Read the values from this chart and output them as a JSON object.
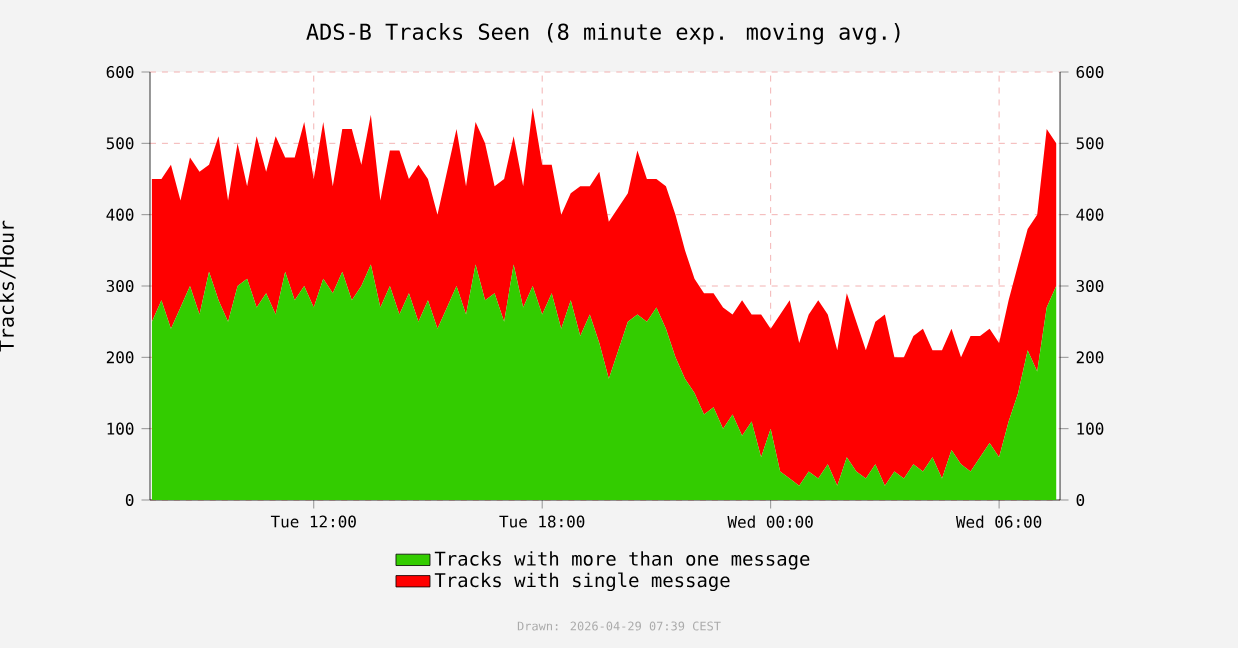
{
  "chart_data": {
    "type": "area",
    "stacked": true,
    "title": "ADS-B Tracks Seen (8 minute exp. moving avg.)",
    "ylabel": "Tracks/Hour",
    "annotations": [
      "Drawn: 2026-04-29 07:39 CEST"
    ],
    "x": [
      "2026-04-28T07:45",
      "2026-04-28T08:00",
      "2026-04-28T08:15",
      "2026-04-28T08:30",
      "2026-04-28T08:45",
      "2026-04-28T09:00",
      "2026-04-28T09:15",
      "2026-04-28T09:30",
      "2026-04-28T09:45",
      "2026-04-28T10:00",
      "2026-04-28T10:15",
      "2026-04-28T10:30",
      "2026-04-28T10:45",
      "2026-04-28T11:00",
      "2026-04-28T11:15",
      "2026-04-28T11:30",
      "2026-04-28T11:45",
      "2026-04-28T12:00",
      "2026-04-28T12:15",
      "2026-04-28T12:30",
      "2026-04-28T12:45",
      "2026-04-28T13:00",
      "2026-04-28T13:15",
      "2026-04-28T13:30",
      "2026-04-28T13:45",
      "2026-04-28T14:00",
      "2026-04-28T14:15",
      "2026-04-28T14:30",
      "2026-04-28T14:45",
      "2026-04-28T15:00",
      "2026-04-28T15:15",
      "2026-04-28T15:30",
      "2026-04-28T15:45",
      "2026-04-28T16:00",
      "2026-04-28T16:15",
      "2026-04-28T16:30",
      "2026-04-28T16:45",
      "2026-04-28T17:00",
      "2026-04-28T17:15",
      "2026-04-28T17:30",
      "2026-04-28T17:45",
      "2026-04-28T18:00",
      "2026-04-28T18:15",
      "2026-04-28T18:30",
      "2026-04-28T18:45",
      "2026-04-28T19:00",
      "2026-04-28T19:15",
      "2026-04-28T19:30",
      "2026-04-28T19:45",
      "2026-04-28T20:00",
      "2026-04-28T20:15",
      "2026-04-28T20:30",
      "2026-04-28T20:45",
      "2026-04-28T21:00",
      "2026-04-28T21:15",
      "2026-04-28T21:30",
      "2026-04-28T21:45",
      "2026-04-28T22:00",
      "2026-04-28T22:15",
      "2026-04-28T22:30",
      "2026-04-28T22:45",
      "2026-04-28T23:00",
      "2026-04-28T23:15",
      "2026-04-28T23:30",
      "2026-04-28T23:45",
      "2026-04-29T00:00",
      "2026-04-29T00:15",
      "2026-04-29T00:30",
      "2026-04-29T00:45",
      "2026-04-29T01:00",
      "2026-04-29T01:15",
      "2026-04-29T01:30",
      "2026-04-29T01:45",
      "2026-04-29T02:00",
      "2026-04-29T02:15",
      "2026-04-29T02:30",
      "2026-04-29T02:45",
      "2026-04-29T03:00",
      "2026-04-29T03:15",
      "2026-04-29T03:30",
      "2026-04-29T03:45",
      "2026-04-29T04:00",
      "2026-04-29T04:15",
      "2026-04-29T04:30",
      "2026-04-29T04:45",
      "2026-04-29T05:00",
      "2026-04-29T05:15",
      "2026-04-29T05:30",
      "2026-04-29T05:45",
      "2026-04-29T06:00",
      "2026-04-29T06:15",
      "2026-04-29T06:30",
      "2026-04-29T06:45",
      "2026-04-29T07:00",
      "2026-04-29T07:15",
      "2026-04-29T07:30"
    ],
    "series": [
      {
        "name": "Tracks with more than one message",
        "color": "#33cc00",
        "values": [
          250,
          280,
          240,
          270,
          300,
          260,
          320,
          280,
          250,
          300,
          310,
          270,
          290,
          260,
          320,
          280,
          300,
          270,
          310,
          290,
          320,
          280,
          300,
          330,
          270,
          300,
          260,
          290,
          250,
          280,
          240,
          270,
          300,
          260,
          330,
          280,
          290,
          250,
          330,
          270,
          300,
          260,
          290,
          240,
          280,
          230,
          260,
          220,
          170,
          210,
          250,
          260,
          250,
          270,
          240,
          200,
          170,
          150,
          120,
          130,
          100,
          120,
          90,
          110,
          60,
          100,
          40,
          30,
          20,
          40,
          30,
          50,
          20,
          60,
          40,
          30,
          50,
          20,
          40,
          30,
          50,
          40,
          60,
          30,
          70,
          50,
          40,
          60,
          80,
          60,
          110,
          150,
          210,
          180,
          270,
          300
        ]
      },
      {
        "name": "Tracks with single message",
        "color": "#ff0000",
        "values": [
          200,
          170,
          230,
          150,
          180,
          200,
          150,
          230,
          170,
          200,
          130,
          240,
          170,
          250,
          160,
          200,
          230,
          180,
          220,
          150,
          200,
          240,
          170,
          210,
          150,
          190,
          230,
          160,
          220,
          170,
          160,
          190,
          220,
          180,
          200,
          220,
          150,
          200,
          180,
          170,
          250,
          210,
          180,
          160,
          150,
          210,
          180,
          240,
          220,
          200,
          180,
          230,
          200,
          180,
          200,
          200,
          180,
          160,
          170,
          160,
          170,
          140,
          190,
          150,
          200,
          140,
          220,
          250,
          200,
          220,
          250,
          210,
          190,
          230,
          210,
          180,
          200,
          240,
          160,
          170,
          180,
          200,
          150,
          180,
          170,
          150,
          190,
          170,
          160,
          160,
          170,
          180,
          170,
          220,
          250,
          200
        ]
      }
    ],
    "xlim": [
      "2026-04-28T07:42",
      "2026-04-29T07:36"
    ],
    "xticks": [
      {
        "value": "2026-04-28T12:00",
        "label": "Tue 12:00"
      },
      {
        "value": "2026-04-28T18:00",
        "label": "Tue 18:00"
      },
      {
        "value": "2026-04-29T00:00",
        "label": "Wed 00:00"
      },
      {
        "value": "2026-04-29T06:00",
        "label": "Wed 06:00"
      }
    ],
    "ylim": [
      0,
      600
    ],
    "yticks": [
      0,
      100,
      200,
      300,
      400,
      500,
      600
    ],
    "y2lim": [
      0,
      600
    ],
    "y2ticks": [
      0,
      100,
      200,
      300,
      400,
      500,
      600
    ],
    "grid": true,
    "legend": "bottom"
  }
}
